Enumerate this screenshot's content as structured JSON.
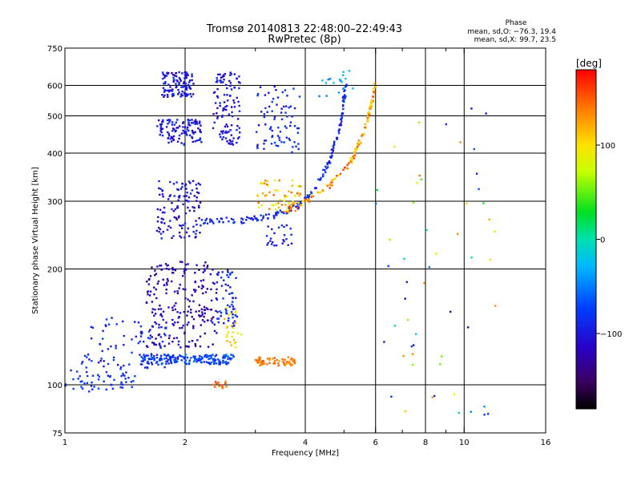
{
  "chart_data": {
    "type": "scatter",
    "title": "Tromsø 20140813 22:48:00–22:49:43",
    "subtitle": "RwPretec (8p)",
    "xlabel": "Frequency [MHz]",
    "ylabel": "Stationary phase Virtual Height [km]",
    "x_scale": "log",
    "y_scale": "log",
    "xlim": [
      1,
      16
    ],
    "ylim": [
      75,
      750
    ],
    "x_ticks": [
      1,
      2,
      4,
      6,
      8,
      10,
      16
    ],
    "x_minor_ticks": [
      3,
      5,
      7,
      9
    ],
    "y_ticks": [
      75,
      100,
      200,
      300,
      400,
      500,
      600,
      750
    ],
    "x_gridlines": [
      2,
      4,
      6,
      8,
      10
    ],
    "y_gridlines": [
      100,
      200,
      300,
      400,
      500,
      600
    ],
    "grid": true,
    "phase_stats": {
      "heading": "Phase",
      "line_o": "mean, sd,O: −76.3, 19.4",
      "line_x": "mean, sd,X:  99.7, 23.5"
    },
    "colorbar": {
      "label": "[deg]",
      "range": [
        -180,
        180
      ],
      "ticks": [
        100,
        0,
        -100
      ],
      "tick_labels": [
        "100",
        "0",
        "−100"
      ]
    },
    "clusters": [
      {
        "f": [
          1.0,
          1.5
        ],
        "h": [
          96,
          110
        ],
        "phase": [
          -95,
          -70
        ],
        "n": 55
      },
      {
        "f": [
          1.1,
          1.8
        ],
        "h": [
          110,
          150
        ],
        "phase": [
          -110,
          -70
        ],
        "n": 80
      },
      {
        "f": [
          1.55,
          2.65
        ],
        "h": [
          113,
          120
        ],
        "phase": [
          -100,
          -55
        ],
        "n": 180
      },
      {
        "f": [
          1.6,
          2.4
        ],
        "h": [
          125,
          210
        ],
        "phase": [
          -140,
          -100
        ],
        "n": 220
      },
      {
        "f": [
          1.7,
          2.2
        ],
        "h": [
          240,
          340
        ],
        "phase": [
          -130,
          -80
        ],
        "n": 120
      },
      {
        "f": [
          1.75,
          2.1
        ],
        "h": [
          560,
          650
        ],
        "phase": [
          -125,
          -80
        ],
        "n": 110
      },
      {
        "f": [
          1.7,
          2.2
        ],
        "h": [
          420,
          490
        ],
        "phase": [
          -120,
          -80
        ],
        "n": 110
      },
      {
        "f": [
          2.35,
          2.75
        ],
        "h": [
          420,
          650
        ],
        "phase": [
          -120,
          -85
        ],
        "n": 110
      },
      {
        "f": [
          2.4,
          2.7
        ],
        "h": [
          140,
          200
        ],
        "phase": [
          -110,
          -70
        ],
        "n": 60
      },
      {
        "f": [
          2.5,
          2.8
        ],
        "h": [
          125,
          160
        ],
        "phase": [
          80,
          120
        ],
        "n": 25
      },
      {
        "f": [
          2.35,
          2.55
        ],
        "h": [
          97,
          102
        ],
        "phase": [
          130,
          160
        ],
        "n": 14
      },
      {
        "f": [
          3.0,
          3.8
        ],
        "h": [
          112,
          118
        ],
        "phase": [
          120,
          150
        ],
        "n": 60
      },
      {
        "f": [
          3.0,
          3.9
        ],
        "h": [
          280,
          340
        ],
        "phase": [
          70,
          150
        ],
        "n": 60
      },
      {
        "f": [
          3.0,
          3.9
        ],
        "h": [
          400,
          600
        ],
        "phase": [
          -110,
          -70
        ],
        "n": 80
      },
      {
        "f": [
          3.2,
          3.7
        ],
        "h": [
          230,
          260
        ],
        "phase": [
          -110,
          -80
        ],
        "n": 25
      },
      {
        "f": [
          4.3,
          5.3
        ],
        "h": [
          560,
          660
        ],
        "phase": [
          -60,
          -10
        ],
        "n": 20
      },
      {
        "f": [
          6.0,
          12.0
        ],
        "h": [
          80,
          600
        ],
        "phase": [
          -130,
          140
        ],
        "n": 55
      }
    ],
    "traces": [
      {
        "name_hint": "o-trace",
        "f": [
          2.2,
          2.8,
          3.3,
          3.8,
          4.2,
          4.6,
          4.9,
          5.05
        ],
        "h": [
          265,
          268,
          275,
          290,
          320,
          380,
          470,
          600
        ],
        "phase": [
          -105,
          -75
        ],
        "n": 170
      },
      {
        "name_hint": "x-trace",
        "f": [
          3.6,
          4.0,
          4.6,
          5.2,
          5.6,
          5.85,
          6.0
        ],
        "h": [
          285,
          300,
          330,
          380,
          450,
          530,
          610
        ],
        "phase": [
          90,
          160
        ],
        "n": 150
      }
    ]
  }
}
